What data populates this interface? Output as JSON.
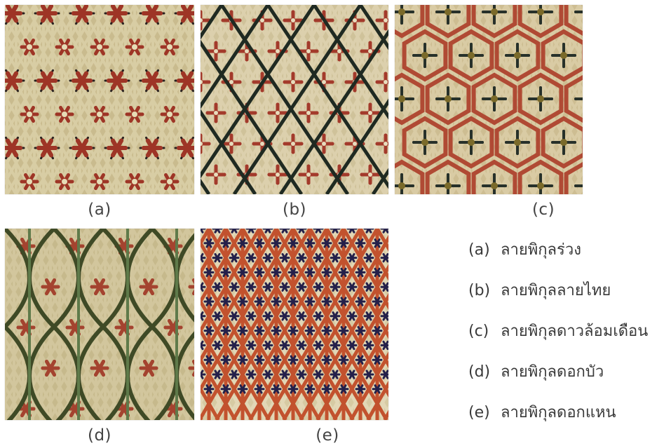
{
  "panels": [
    {
      "id": "a",
      "caption": "(a)",
      "colors": {
        "base": "#c9bb8e",
        "light": "#e6dcb6",
        "pattern": "#9e3526",
        "accent": "#2a2220"
      }
    },
    {
      "id": "b",
      "caption": "(b)",
      "colors": {
        "base": "#cfc29a",
        "light": "#e7ddbd",
        "pattern": "#a33a2b",
        "accent": "#1f2a22"
      }
    },
    {
      "id": "c",
      "caption": "(c)",
      "colors": {
        "base": "#cdbd92",
        "light": "#e4d8b3",
        "pattern": "#b04a34",
        "accent": "#27312a"
      }
    },
    {
      "id": "d",
      "caption": "(d)",
      "colors": {
        "base": "#c6b98c",
        "light": "#ddd2ac",
        "pattern": "#a4432f",
        "accent": "#3f4a26"
      }
    },
    {
      "id": "e",
      "caption": "(e)",
      "colors": {
        "base": "#d6caa3",
        "light": "#ece3c6",
        "pattern": "#c2522e",
        "accent": "#24204a"
      }
    }
  ],
  "legend": [
    {
      "key": "(a)",
      "label": "ลายพิกุลร่วง"
    },
    {
      "key": "(b)",
      "label": "ลายพิกุลลายไทย"
    },
    {
      "key": "(c)",
      "label": "ลายพิกุลดาวล้อมเดือน"
    },
    {
      "key": "(d)",
      "label": "ลายพิกุลดอกบัว"
    },
    {
      "key": "(e)",
      "label": "ลายพิกุลดอกแหน"
    }
  ]
}
